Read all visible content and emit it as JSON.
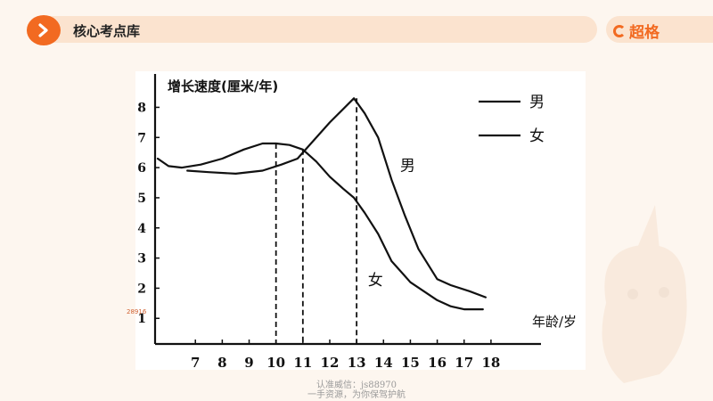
{
  "header": {
    "title": "核心考点库",
    "brand": "超格"
  },
  "icons": {
    "nav": "chevron-right-icon",
    "brand": "brand-logo-icon",
    "mascot": "unicorn-mascot-icon"
  },
  "colors": {
    "accent": "#f26a21",
    "band": "#fbe3cf",
    "line": "#111111"
  },
  "side_note": "28916",
  "watermark": {
    "line1": "认准威信：js88970",
    "line2": "一手资源，为你保驾护航"
  },
  "chart_data": {
    "type": "line",
    "ylabel": "增长速度(厘米/年)",
    "xlabel": "年龄/岁",
    "x_ticks": [
      7,
      8,
      9,
      10,
      11,
      12,
      13,
      14,
      15,
      16,
      17,
      18
    ],
    "y_ticks": [
      1,
      2,
      3,
      4,
      5,
      6,
      7,
      8
    ],
    "xlim": [
      5.5,
      18.7
    ],
    "ylim": [
      0.15,
      8.9
    ],
    "legend": {
      "placement": "top-right",
      "entries": [
        "男",
        "女"
      ]
    },
    "series": [
      {
        "name": "男",
        "x": [
          6.7,
          7.5,
          8.5,
          9.5,
          10.2,
          10.8,
          11.2,
          12.0,
          12.9,
          13.3,
          13.8,
          14.3,
          14.8,
          15.3,
          16.0,
          16.5,
          17.2,
          17.8
        ],
        "y": [
          5.9,
          5.85,
          5.8,
          5.9,
          6.1,
          6.3,
          6.7,
          7.5,
          8.3,
          7.8,
          7.0,
          5.6,
          4.4,
          3.3,
          2.3,
          2.1,
          1.9,
          1.7
        ]
      },
      {
        "name": "女",
        "x": [
          5.6,
          6.0,
          6.5,
          7.2,
          8.0,
          8.8,
          9.5,
          10.0,
          10.5,
          11.0,
          11.5,
          12.0,
          12.5,
          12.9,
          13.3,
          13.8,
          14.3,
          14.8,
          15.0,
          15.5,
          16.0,
          16.5,
          17.0,
          17.7
        ],
        "y": [
          6.3,
          6.05,
          6.0,
          6.1,
          6.3,
          6.6,
          6.8,
          6.8,
          6.75,
          6.6,
          6.2,
          5.7,
          5.3,
          5.0,
          4.5,
          3.8,
          2.9,
          2.4,
          2.2,
          1.9,
          1.6,
          1.4,
          1.3,
          1.3
        ]
      }
    ],
    "annotations": [
      {
        "text": "男",
        "x": 14.9,
        "y": 5.9
      },
      {
        "text": "女",
        "x": 13.7,
        "y": 2.1
      }
    ],
    "reference_lines": [
      {
        "x": 10,
        "y": 6.8
      },
      {
        "x": 11,
        "y": 6.6
      },
      {
        "x": 13,
        "y": 8.3
      }
    ]
  }
}
